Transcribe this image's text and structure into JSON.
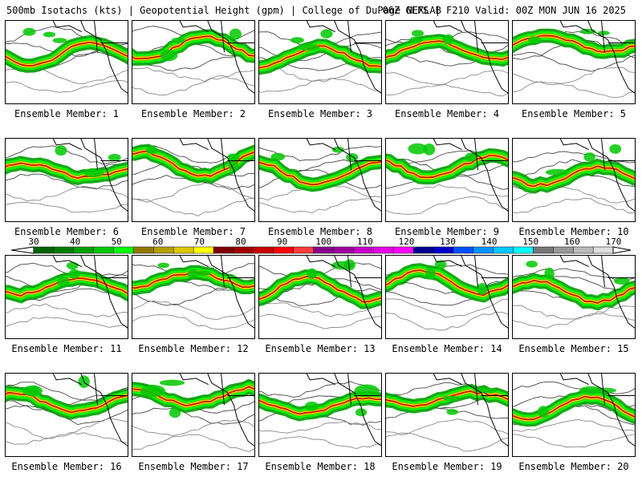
{
  "header": {
    "title_left": "500mb Isotachs (kts) | Geopotential Height (gpm) | College of DuPage NEXLAB",
    "title_right": "06Z GEFS | F210 Valid: 00Z MON JUN 16 2025"
  },
  "colorbar": {
    "tick_labels": [
      "30",
      "40",
      "50",
      "60",
      "70",
      "80",
      "90",
      "100",
      "110",
      "120",
      "130",
      "140",
      "150",
      "160",
      "170"
    ],
    "colors": [
      "#006400",
      "#007d00",
      "#00a000",
      "#00c800",
      "#00ff00",
      "#967800",
      "#b4a000",
      "#dcc800",
      "#ffff00",
      "#800000",
      "#a00000",
      "#c80000",
      "#ff0000",
      "#ff3c3c",
      "#8b008b",
      "#a000a0",
      "#c800c8",
      "#e600e6",
      "#ff00ff",
      "#00008b",
      "#0000cd",
      "#0050ff",
      "#0096ff",
      "#00c8ff",
      "#00ffff",
      "#777777",
      "#999999",
      "#bbbbbb",
      "#dddddd"
    ]
  },
  "panels": [
    {
      "label": "Ensemble Member: 1"
    },
    {
      "label": "Ensemble Member: 2"
    },
    {
      "label": "Ensemble Member: 3"
    },
    {
      "label": "Ensemble Member: 4"
    },
    {
      "label": "Ensemble Member: 5"
    },
    {
      "label": "Ensemble Member: 6"
    },
    {
      "label": "Ensemble Member: 7"
    },
    {
      "label": "Ensemble Member: 8"
    },
    {
      "label": "Ensemble Member: 9"
    },
    {
      "label": "Ensemble Member: 10"
    },
    {
      "label": "Ensemble Member: 11"
    },
    {
      "label": "Ensemble Member: 12"
    },
    {
      "label": "Ensemble Member: 13"
    },
    {
      "label": "Ensemble Member: 14"
    },
    {
      "label": "Ensemble Member: 15"
    },
    {
      "label": "Ensemble Member: 16"
    },
    {
      "label": "Ensemble Member: 17"
    },
    {
      "label": "Ensemble Member: 18"
    },
    {
      "label": "Ensemble Member: 19"
    },
    {
      "label": "Ensemble Member: 20"
    }
  ]
}
